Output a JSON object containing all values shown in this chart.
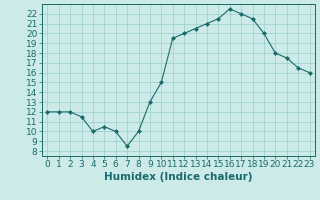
{
  "x": [
    0,
    1,
    2,
    3,
    4,
    5,
    6,
    7,
    8,
    9,
    10,
    11,
    12,
    13,
    14,
    15,
    16,
    17,
    18,
    19,
    20,
    21,
    22,
    23
  ],
  "y": [
    12,
    12,
    12,
    11.5,
    10,
    10.5,
    10,
    8.5,
    10,
    13,
    15,
    19.5,
    20,
    20.5,
    21,
    21.5,
    22.5,
    22,
    21.5,
    20,
    18,
    17.5,
    16.5,
    16
  ],
  "line_color": "#1a6b6b",
  "marker": "D",
  "marker_size": 2.0,
  "bg_color": "#cceae7",
  "grid_color": "#99cece",
  "xlabel": "Humidex (Indice chaleur)",
  "ylabel": "",
  "xlim": [
    -0.5,
    23.5
  ],
  "ylim": [
    7.5,
    23.0
  ],
  "yticks": [
    8,
    9,
    10,
    11,
    12,
    13,
    14,
    15,
    16,
    17,
    18,
    19,
    20,
    21,
    22
  ],
  "xticks": [
    0,
    1,
    2,
    3,
    4,
    5,
    6,
    7,
    8,
    9,
    10,
    11,
    12,
    13,
    14,
    15,
    16,
    17,
    18,
    19,
    20,
    21,
    22,
    23
  ],
  "tick_color": "#1a6b6b",
  "label_color": "#1a6b6b",
  "axis_color": "#1a6b6b",
  "font_size": 6.5,
  "xlabel_fontsize": 7.5
}
